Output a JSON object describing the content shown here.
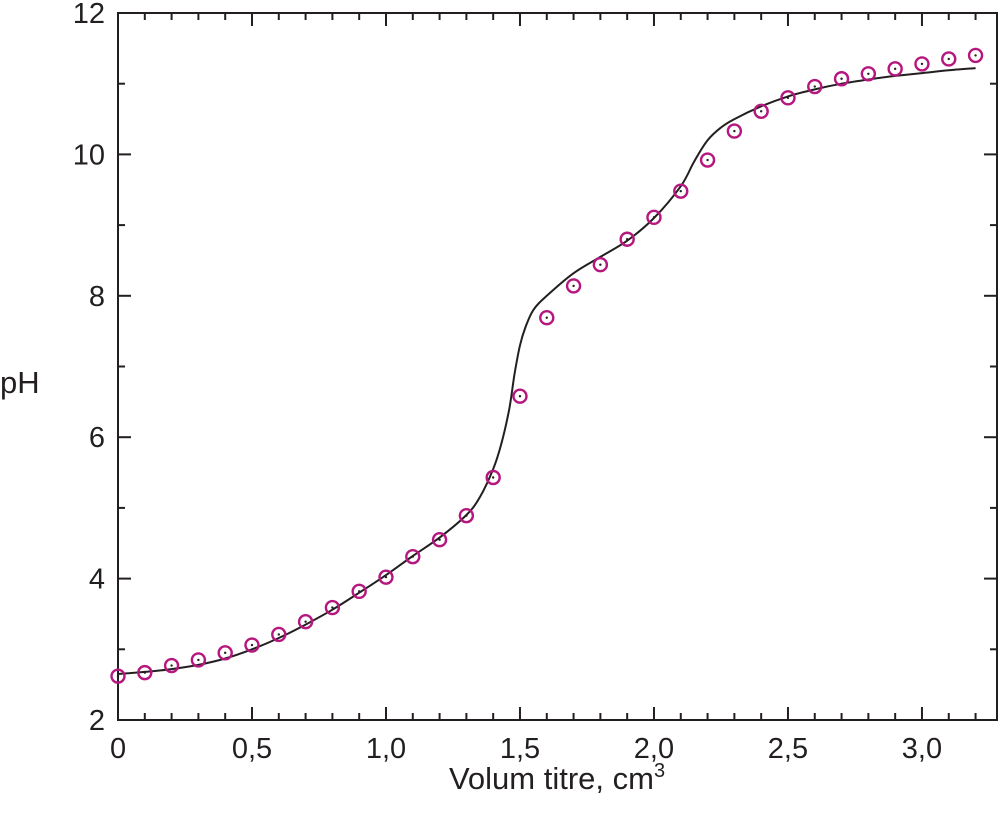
{
  "chart_data": {
    "type": "scatter",
    "title": "",
    "xlabel": "Volum titre, cm",
    "xlabel_superscript": "3",
    "ylabel": "pH",
    "xlim": [
      0,
      3.28
    ],
    "ylim": [
      2,
      12
    ],
    "grid": false,
    "x_ticks": [
      {
        "value": 0,
        "label": "0"
      },
      {
        "value": 0.5,
        "label": "0,5"
      },
      {
        "value": 1.0,
        "label": "1,0"
      },
      {
        "value": 1.5,
        "label": "1,5"
      },
      {
        "value": 2.0,
        "label": "2,0"
      },
      {
        "value": 2.5,
        "label": "2,5"
      },
      {
        "value": 3.0,
        "label": "3,0"
      }
    ],
    "x_minor_ticks": [
      0.1,
      0.2,
      0.3,
      0.4,
      0.6,
      0.7,
      0.8,
      0.9,
      1.1,
      1.2,
      1.3,
      1.4,
      1.6,
      1.7,
      1.8,
      1.9,
      2.1,
      2.2,
      2.3,
      2.4,
      2.6,
      2.7,
      2.8,
      2.9,
      3.1,
      3.2
    ],
    "y_ticks": [
      {
        "value": 2,
        "label": "2"
      },
      {
        "value": 4,
        "label": "4"
      },
      {
        "value": 6,
        "label": "6"
      },
      {
        "value": 8,
        "label": "8"
      },
      {
        "value": 10,
        "label": "10"
      },
      {
        "value": 12,
        "label": "12"
      }
    ],
    "y_minor_ticks": [
      3,
      5,
      7,
      9,
      11
    ],
    "series": [
      {
        "kind": "markers",
        "marker": "open-circle",
        "color": "#b5177e",
        "x": [
          0,
          0.1,
          0.2,
          0.3,
          0.4,
          0.5,
          0.6,
          0.7,
          0.8,
          0.9,
          1.0,
          1.1,
          1.2,
          1.3,
          1.4,
          1.5,
          1.6,
          1.7,
          1.8,
          1.9,
          2.0,
          2.1,
          2.2,
          2.3,
          2.4,
          2.5,
          2.6,
          2.7,
          2.8,
          2.9,
          3.0,
          3.1,
          3.2
        ],
        "y": [
          2.62,
          2.67,
          2.77,
          2.85,
          2.95,
          3.06,
          3.21,
          3.39,
          3.59,
          3.82,
          4.02,
          4.31,
          4.55,
          4.89,
          5.43,
          6.58,
          7.69,
          8.14,
          8.44,
          8.8,
          9.11,
          9.48,
          9.92,
          10.33,
          10.61,
          10.8,
          10.96,
          11.07,
          11.14,
          11.21,
          11.28,
          11.35,
          11.4
        ]
      },
      {
        "kind": "line",
        "color": "#231f20",
        "x": [
          0,
          0.1,
          0.2,
          0.3,
          0.4,
          0.5,
          0.6,
          0.7,
          0.8,
          0.9,
          1.0,
          1.1,
          1.2,
          1.3,
          1.35,
          1.4,
          1.43,
          1.46,
          1.48,
          1.5,
          1.52,
          1.55,
          1.6,
          1.7,
          1.8,
          1.9,
          2.0,
          2.1,
          2.15,
          2.2,
          2.25,
          2.3,
          2.4,
          2.5,
          2.6,
          2.7,
          2.8,
          2.9,
          3.0,
          3.1,
          3.2
        ],
        "y": [
          2.65,
          2.68,
          2.72,
          2.78,
          2.87,
          3.0,
          3.16,
          3.35,
          3.56,
          3.8,
          4.05,
          4.32,
          4.58,
          4.9,
          5.15,
          5.55,
          5.9,
          6.4,
          6.9,
          7.3,
          7.55,
          7.8,
          8.0,
          8.32,
          8.55,
          8.78,
          9.1,
          9.55,
          9.9,
          10.2,
          10.38,
          10.5,
          10.68,
          10.82,
          10.92,
          11.0,
          11.06,
          11.11,
          11.15,
          11.19,
          11.22
        ]
      }
    ]
  }
}
